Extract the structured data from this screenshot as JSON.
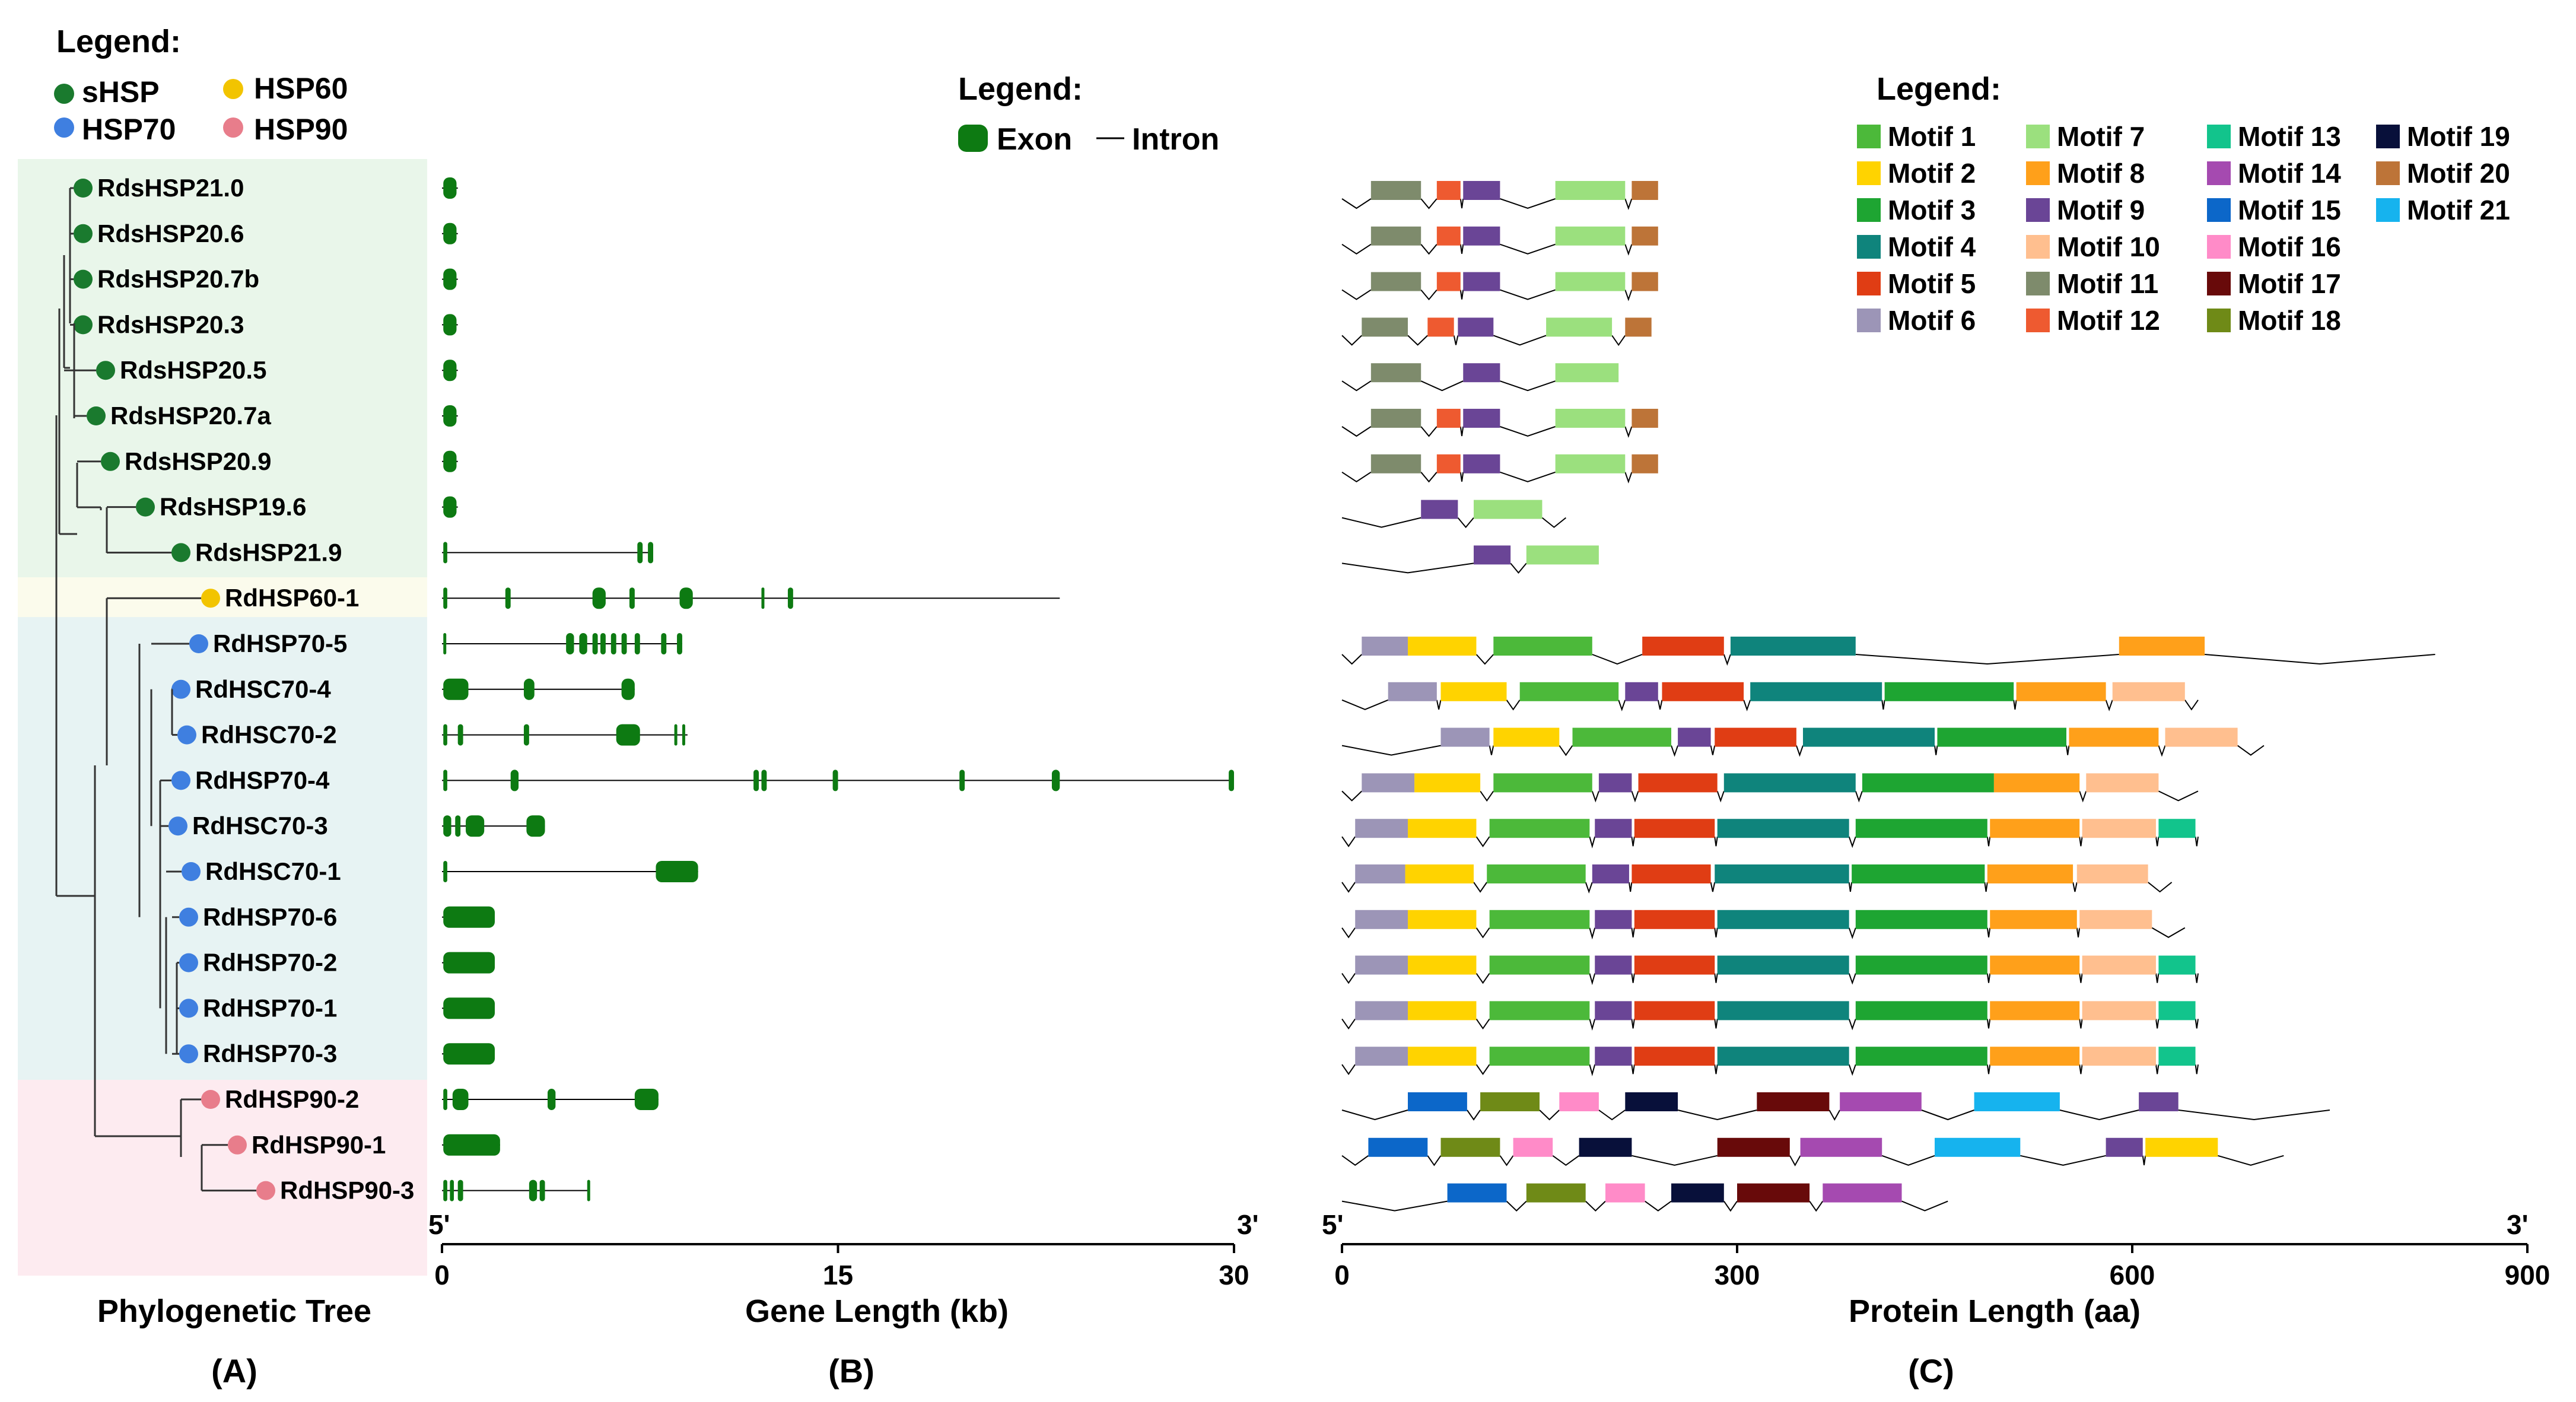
{
  "tree_panel": {
    "legend_title": "Legend:",
    "legend": [
      {
        "label": "sHSP",
        "color": "#1a7a2e"
      },
      {
        "label": "HSP60",
        "color": "#f2c400"
      },
      {
        "label": "HSP70",
        "color": "#3f7fe0"
      },
      {
        "label": "HSP90",
        "color": "#e87d8b"
      }
    ],
    "axis_label": "Phylogenetic Tree",
    "panel_letter": "(A)"
  },
  "gene_panel": {
    "legend_title": "Legend:",
    "exon_label": "Exon",
    "intron_label": "Intron",
    "exon_color": "#0d7a12",
    "end5": "5'",
    "end3": "3'",
    "axis_label": "Gene Length (kb)",
    "ticks": [
      "0",
      "15",
      "30"
    ],
    "xlim": [
      0,
      30
    ],
    "panel_letter": "(B)"
  },
  "protein_panel": {
    "legend_title": "Legend:",
    "end5": "5'",
    "end3": "3'",
    "axis_label": "Protein Length (aa)",
    "ticks": [
      "0",
      "300",
      "600",
      "900"
    ],
    "xlim": [
      0,
      900
    ],
    "panel_letter": "(C)",
    "motifs": [
      {
        "label": "Motif 1",
        "color": "#4cb93a"
      },
      {
        "label": "Motif 2",
        "color": "#ffd300"
      },
      {
        "label": "Motif 3",
        "color": "#1ea532"
      },
      {
        "label": "Motif 4",
        "color": "#0f847c"
      },
      {
        "label": "Motif 5",
        "color": "#e03d14"
      },
      {
        "label": "Motif 6",
        "color": "#9c95b7"
      },
      {
        "label": "Motif 7",
        "color": "#9be07e"
      },
      {
        "label": "Motif 8",
        "color": "#ffa01a"
      },
      {
        "label": "Motif 9",
        "color": "#6a4596"
      },
      {
        "label": "Motif 10",
        "color": "#ffbf8f"
      },
      {
        "label": "Motif 11",
        "color": "#7e8b6c"
      },
      {
        "label": "Motif 12",
        "color": "#ee5a30"
      },
      {
        "label": "Motif 13",
        "color": "#12c48c"
      },
      {
        "label": "Motif 14",
        "color": "#a54ab0"
      },
      {
        "label": "Motif 15",
        "color": "#0c67c9"
      },
      {
        "label": "Motif 16",
        "color": "#ff8bc8"
      },
      {
        "label": "Motif 17",
        "color": "#680a0a"
      },
      {
        "label": "Motif 18",
        "color": "#6f8a17"
      },
      {
        "label": "Motif 19",
        "color": "#08103a"
      },
      {
        "label": "Motif 20",
        "color": "#bd7438"
      },
      {
        "label": "Motif 21",
        "color": "#16b3ee"
      }
    ]
  },
  "genes": [
    {
      "name": "RdsHSP21.0",
      "family": "sHSP",
      "gene_len": 0.6,
      "exons": [
        [
          0.05,
          0.55
        ]
      ],
      "protein_len": 190,
      "motifs": [
        [
          11,
          22,
          60
        ],
        [
          12,
          72,
          90
        ],
        [
          9,
          92,
          120
        ],
        [
          7,
          162,
          215
        ],
        [
          20,
          220,
          240
        ]
      ]
    },
    {
      "name": "RdsHSP20.6",
      "family": "sHSP",
      "gene_len": 0.6,
      "exons": [
        [
          0.05,
          0.55
        ]
      ],
      "protein_len": 190,
      "motifs": [
        [
          11,
          22,
          60
        ],
        [
          12,
          72,
          90
        ],
        [
          9,
          92,
          120
        ],
        [
          7,
          162,
          215
        ],
        [
          20,
          220,
          240
        ]
      ]
    },
    {
      "name": "RdsHSP20.7b",
      "family": "sHSP",
      "gene_len": 0.6,
      "exons": [
        [
          0.05,
          0.55
        ]
      ],
      "protein_len": 190,
      "motifs": [
        [
          11,
          22,
          60
        ],
        [
          12,
          72,
          90
        ],
        [
          9,
          92,
          120
        ],
        [
          7,
          162,
          215
        ],
        [
          20,
          220,
          240
        ]
      ]
    },
    {
      "name": "RdsHSP20.3",
      "family": "sHSP",
      "gene_len": 0.6,
      "exons": [
        [
          0.05,
          0.55
        ]
      ],
      "protein_len": 185,
      "motifs": [
        [
          11,
          15,
          50
        ],
        [
          12,
          65,
          85
        ],
        [
          9,
          88,
          115
        ],
        [
          7,
          155,
          205
        ],
        [
          20,
          215,
          235
        ]
      ]
    },
    {
      "name": "RdsHSP20.5",
      "family": "sHSP",
      "gene_len": 0.6,
      "exons": [
        [
          0.05,
          0.55
        ]
      ],
      "protein_len": 180,
      "motifs": [
        [
          11,
          22,
          60
        ],
        [
          9,
          92,
          120
        ],
        [
          7,
          162,
          210
        ]
      ]
    },
    {
      "name": "RdsHSP20.7a",
      "family": "sHSP",
      "gene_len": 0.6,
      "exons": [
        [
          0.05,
          0.55
        ]
      ],
      "protein_len": 190,
      "motifs": [
        [
          11,
          22,
          60
        ],
        [
          12,
          72,
          90
        ],
        [
          9,
          92,
          120
        ],
        [
          7,
          162,
          215
        ],
        [
          20,
          220,
          240
        ]
      ]
    },
    {
      "name": "RdsHSP20.9",
      "family": "sHSP",
      "gene_len": 0.6,
      "exons": [
        [
          0.05,
          0.55
        ]
      ],
      "protein_len": 190,
      "motifs": [
        [
          11,
          22,
          60
        ],
        [
          12,
          72,
          90
        ],
        [
          9,
          92,
          120
        ],
        [
          7,
          162,
          215
        ],
        [
          20,
          220,
          240
        ]
      ]
    },
    {
      "name": "RdsHSP19.6",
      "family": "sHSP",
      "gene_len": 0.6,
      "exons": [
        [
          0.05,
          0.55
        ]
      ],
      "protein_len": 170,
      "motifs": [
        [
          9,
          60,
          88
        ],
        [
          7,
          100,
          152
        ]
      ]
    },
    {
      "name": "RdsHSP21.9",
      "family": "sHSP",
      "gene_len": 8.0,
      "exons": [
        [
          0.05,
          0.2
        ],
        [
          7.4,
          7.6
        ],
        [
          7.8,
          8.0
        ]
      ],
      "protein_len": 195,
      "motifs": [
        [
          9,
          100,
          128
        ],
        [
          7,
          140,
          195
        ]
      ]
    },
    {
      "name": "RdHSP60-1",
      "family": "HSP60",
      "gene_len": 23.4,
      "exons": [
        [
          0.05,
          0.2
        ],
        [
          2.4,
          2.6
        ],
        [
          5.7,
          6.2
        ],
        [
          7.1,
          7.3
        ],
        [
          9.0,
          9.5
        ],
        [
          12.1,
          12.2
        ],
        [
          13.1,
          13.3
        ]
      ],
      "protein_len": 0,
      "motifs": []
    },
    {
      "name": "RdHSP70-5",
      "family": "HSP70",
      "gene_len": 9.1,
      "exons": [
        [
          0.05,
          0.15
        ],
        [
          4.7,
          5.0
        ],
        [
          5.2,
          5.5
        ],
        [
          5.7,
          5.9
        ],
        [
          6.0,
          6.2
        ],
        [
          6.4,
          6.6
        ],
        [
          6.8,
          7.0
        ],
        [
          7.3,
          7.5
        ],
        [
          8.3,
          8.5
        ],
        [
          8.9,
          9.1
        ]
      ],
      "protein_len": 830,
      "motifs": [
        [
          6,
          15,
          50
        ],
        [
          2,
          50,
          102
        ],
        [
          1,
          115,
          190
        ],
        [
          5,
          228,
          290
        ],
        [
          4,
          295,
          390
        ],
        [
          8,
          590,
          655
        ]
      ]
    },
    {
      "name": "RdHSC70-4",
      "family": "HSP70",
      "gene_len": 7.3,
      "exons": [
        [
          0.05,
          1.0
        ],
        [
          3.1,
          3.5
        ],
        [
          6.8,
          7.3
        ]
      ],
      "protein_len": 650,
      "motifs": [
        [
          6,
          35,
          72
        ],
        [
          2,
          75,
          125
        ],
        [
          1,
          135,
          210
        ],
        [
          9,
          215,
          240
        ],
        [
          5,
          243,
          305
        ],
        [
          4,
          310,
          410
        ],
        [
          3,
          412,
          510
        ],
        [
          8,
          512,
          580
        ],
        [
          10,
          585,
          640
        ]
      ]
    },
    {
      "name": "RdHSC70-2",
      "family": "HSP70",
      "gene_len": 9.3,
      "exons": [
        [
          0.05,
          0.2
        ],
        [
          0.6,
          0.8
        ],
        [
          3.1,
          3.3
        ],
        [
          6.6,
          7.5
        ],
        [
          8.8,
          8.9
        ],
        [
          9.1,
          9.2
        ]
      ],
      "protein_len": 700,
      "motifs": [
        [
          6,
          75,
          112
        ],
        [
          2,
          115,
          165
        ],
        [
          1,
          175,
          250
        ],
        [
          9,
          255,
          280
        ],
        [
          5,
          283,
          345
        ],
        [
          4,
          350,
          450
        ],
        [
          3,
          452,
          550
        ],
        [
          8,
          552,
          620
        ],
        [
          10,
          625,
          680
        ]
      ]
    },
    {
      "name": "RdHSP70-4",
      "family": "HSP70",
      "gene_len": 30.0,
      "exons": [
        [
          0.05,
          0.2
        ],
        [
          2.6,
          2.9
        ],
        [
          11.8,
          12.0
        ],
        [
          12.1,
          12.3
        ],
        [
          14.8,
          15.0
        ],
        [
          19.6,
          19.8
        ],
        [
          23.1,
          23.4
        ],
        [
          29.8,
          30.0
        ]
      ],
      "protein_len": 650,
      "motifs": [
        [
          6,
          15,
          55
        ],
        [
          2,
          55,
          105
        ],
        [
          1,
          115,
          190
        ],
        [
          9,
          195,
          220
        ],
        [
          5,
          225,
          285
        ],
        [
          4,
          290,
          390
        ],
        [
          3,
          395,
          495
        ],
        [
          8,
          495,
          560
        ],
        [
          10,
          565,
          620
        ]
      ]
    },
    {
      "name": "RdHSC70-3",
      "family": "HSP70",
      "gene_len": 3.9,
      "exons": [
        [
          0.05,
          0.35
        ],
        [
          0.5,
          0.7
        ],
        [
          0.9,
          1.6
        ],
        [
          3.2,
          3.9
        ]
      ],
      "protein_len": 650,
      "motifs": [
        [
          6,
          10,
          50
        ],
        [
          2,
          50,
          102
        ],
        [
          1,
          112,
          188
        ],
        [
          9,
          192,
          220
        ],
        [
          5,
          222,
          283
        ],
        [
          4,
          285,
          385
        ],
        [
          3,
          390,
          490
        ],
        [
          8,
          492,
          560
        ],
        [
          10,
          562,
          618
        ],
        [
          13,
          620,
          648
        ]
      ]
    },
    {
      "name": "RdHSC70-1",
      "family": "HSP70",
      "gene_len": 9.7,
      "exons": [
        [
          0.05,
          0.2
        ],
        [
          8.1,
          9.7
        ]
      ],
      "protein_len": 630,
      "motifs": [
        [
          6,
          10,
          48
        ],
        [
          2,
          48,
          100
        ],
        [
          1,
          110,
          185
        ],
        [
          9,
          190,
          218
        ],
        [
          5,
          220,
          280
        ],
        [
          4,
          283,
          385
        ],
        [
          3,
          387,
          488
        ],
        [
          8,
          490,
          555
        ],
        [
          10,
          558,
          612
        ]
      ]
    },
    {
      "name": "RdHSP70-6",
      "family": "HSP70",
      "gene_len": 2.0,
      "exons": [
        [
          0.05,
          2.0
        ]
      ],
      "protein_len": 640,
      "motifs": [
        [
          6,
          10,
          50
        ],
        [
          2,
          50,
          102
        ],
        [
          1,
          112,
          188
        ],
        [
          9,
          192,
          220
        ],
        [
          5,
          222,
          283
        ],
        [
          4,
          285,
          385
        ],
        [
          3,
          390,
          490
        ],
        [
          8,
          492,
          558
        ],
        [
          10,
          560,
          615
        ]
      ]
    },
    {
      "name": "RdHSP70-2",
      "family": "HSP70",
      "gene_len": 2.0,
      "exons": [
        [
          0.05,
          2.0
        ]
      ],
      "protein_len": 650,
      "motifs": [
        [
          6,
          10,
          50
        ],
        [
          2,
          50,
          102
        ],
        [
          1,
          112,
          188
        ],
        [
          9,
          192,
          220
        ],
        [
          5,
          222,
          283
        ],
        [
          4,
          285,
          385
        ],
        [
          3,
          390,
          490
        ],
        [
          8,
          492,
          560
        ],
        [
          10,
          562,
          618
        ],
        [
          13,
          620,
          648
        ]
      ]
    },
    {
      "name": "RdHSP70-1",
      "family": "HSP70",
      "gene_len": 2.0,
      "exons": [
        [
          0.05,
          2.0
        ]
      ],
      "protein_len": 650,
      "motifs": [
        [
          6,
          10,
          50
        ],
        [
          2,
          50,
          102
        ],
        [
          1,
          112,
          188
        ],
        [
          9,
          192,
          220
        ],
        [
          5,
          222,
          283
        ],
        [
          4,
          285,
          385
        ],
        [
          3,
          390,
          490
        ],
        [
          8,
          492,
          560
        ],
        [
          10,
          562,
          618
        ],
        [
          13,
          620,
          648
        ]
      ]
    },
    {
      "name": "RdHSP70-3",
      "family": "HSP70",
      "gene_len": 2.0,
      "exons": [
        [
          0.05,
          2.0
        ]
      ],
      "protein_len": 650,
      "motifs": [
        [
          6,
          10,
          50
        ],
        [
          2,
          50,
          102
        ],
        [
          1,
          112,
          188
        ],
        [
          9,
          192,
          220
        ],
        [
          5,
          222,
          283
        ],
        [
          4,
          285,
          385
        ],
        [
          3,
          390,
          490
        ],
        [
          8,
          492,
          560
        ],
        [
          10,
          562,
          618
        ],
        [
          13,
          620,
          648
        ]
      ]
    },
    {
      "name": "RdHSP90-2",
      "family": "HSP90",
      "gene_len": 8.2,
      "exons": [
        [
          0.05,
          0.2
        ],
        [
          0.4,
          1.0
        ],
        [
          4.0,
          4.3
        ],
        [
          7.3,
          8.2
        ]
      ],
      "protein_len": 750,
      "motifs": [
        [
          15,
          50,
          95
        ],
        [
          18,
          105,
          150
        ],
        [
          16,
          165,
          195
        ],
        [
          19,
          215,
          255
        ],
        [
          17,
          315,
          370
        ],
        [
          14,
          378,
          440
        ],
        [
          21,
          480,
          545
        ],
        [
          9,
          605,
          635
        ]
      ]
    },
    {
      "name": "RdHSP90-1",
      "family": "HSP90",
      "gene_len": 2.2,
      "exons": [
        [
          0.05,
          2.2
        ]
      ],
      "protein_len": 715,
      "motifs": [
        [
          15,
          20,
          65
        ],
        [
          18,
          75,
          120
        ],
        [
          16,
          130,
          160
        ],
        [
          19,
          180,
          220
        ],
        [
          17,
          285,
          340
        ],
        [
          14,
          348,
          410
        ],
        [
          21,
          450,
          515
        ],
        [
          9,
          580,
          608
        ],
        [
          2,
          610,
          665
        ]
      ]
    },
    {
      "name": "RdHSP90-3",
      "family": "HSP90",
      "gene_len": 5.6,
      "exons": [
        [
          0.05,
          0.2
        ],
        [
          0.3,
          0.45
        ],
        [
          0.6,
          0.8
        ],
        [
          3.3,
          3.6
        ],
        [
          3.7,
          3.9
        ],
        [
          5.5,
          5.6
        ]
      ],
      "protein_len": 460,
      "motifs": [
        [
          15,
          80,
          125
        ],
        [
          18,
          140,
          185
        ],
        [
          16,
          200,
          230
        ],
        [
          19,
          250,
          290
        ],
        [
          17,
          300,
          355
        ],
        [
          14,
          365,
          425
        ]
      ]
    }
  ]
}
